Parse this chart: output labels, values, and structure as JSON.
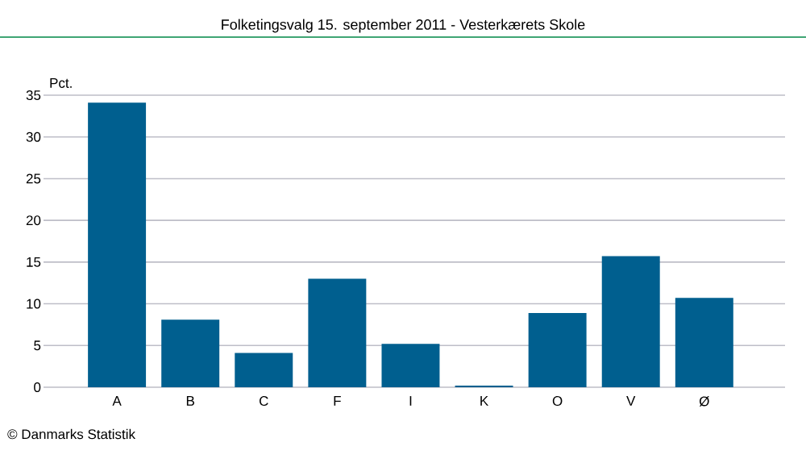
{
  "chart_data": {
    "type": "bar",
    "title": "Folketingsvalg 15. september 2011 - Vesterkærets Skole",
    "ylabel": "Pct.",
    "categories": [
      "A",
      "B",
      "C",
      "F",
      "I",
      "K",
      "O",
      "V",
      "Ø"
    ],
    "values": [
      34.1,
      8.1,
      4.1,
      13.0,
      5.2,
      0.2,
      8.9,
      15.7,
      10.7
    ],
    "color": "#005f8f",
    "ylim": [
      0,
      35
    ],
    "yticks": [
      0,
      5,
      10,
      15,
      20,
      25,
      30,
      35
    ],
    "grid": "y",
    "annotations": [
      "© Danmarks Statistik"
    ]
  }
}
